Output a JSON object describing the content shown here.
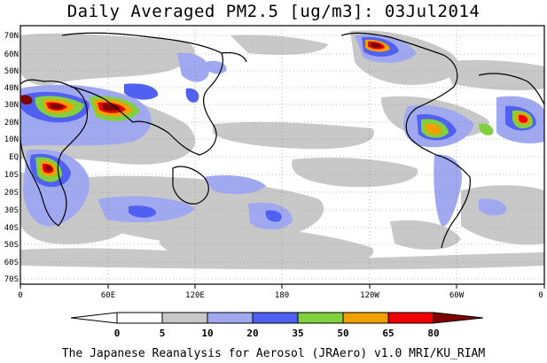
{
  "title": "Daily Averaged PM2.5 [ug/m3]: 03Jul2014",
  "credit": "The Japanese Reanalysis for Aerosol (JRAero) v1.0 MRI/KU_RIAM",
  "lat_labels": [
    "70N",
    "60N",
    "50N",
    "40N",
    "30N",
    "20N",
    "10N",
    "EQ",
    "10S",
    "20S",
    "30S",
    "40S",
    "50S",
    "60S",
    "70S"
  ],
  "lon_labels": [
    "0",
    "60E",
    "120E",
    "180",
    "120W",
    "60W",
    "0"
  ],
  "colorbar": {
    "ticks": [
      "0",
      "5",
      "10",
      "20",
      "35",
      "50",
      "65",
      "80"
    ],
    "colors": [
      "#ffffff",
      "#c8c8c8",
      "#a0a8f0",
      "#5060f0",
      "#80d040",
      "#f0a000",
      "#f00000",
      "#800000"
    ]
  },
  "legend_levels": [
    {
      "range": "<0",
      "color": "#ffffff"
    },
    {
      "range": "0-5",
      "color": "#ffffff"
    },
    {
      "range": "5-10",
      "color": "#c8c8c8"
    },
    {
      "range": "10-20",
      "color": "#a0a8f0"
    },
    {
      "range": "20-35",
      "color": "#5060f0"
    },
    {
      "range": "35-50",
      "color": "#80d040"
    },
    {
      "range": "50-65",
      "color": "#f0a000"
    },
    {
      "range": "65-80",
      "color": "#f00000"
    },
    {
      "range": ">80",
      "color": "#800000"
    }
  ]
}
